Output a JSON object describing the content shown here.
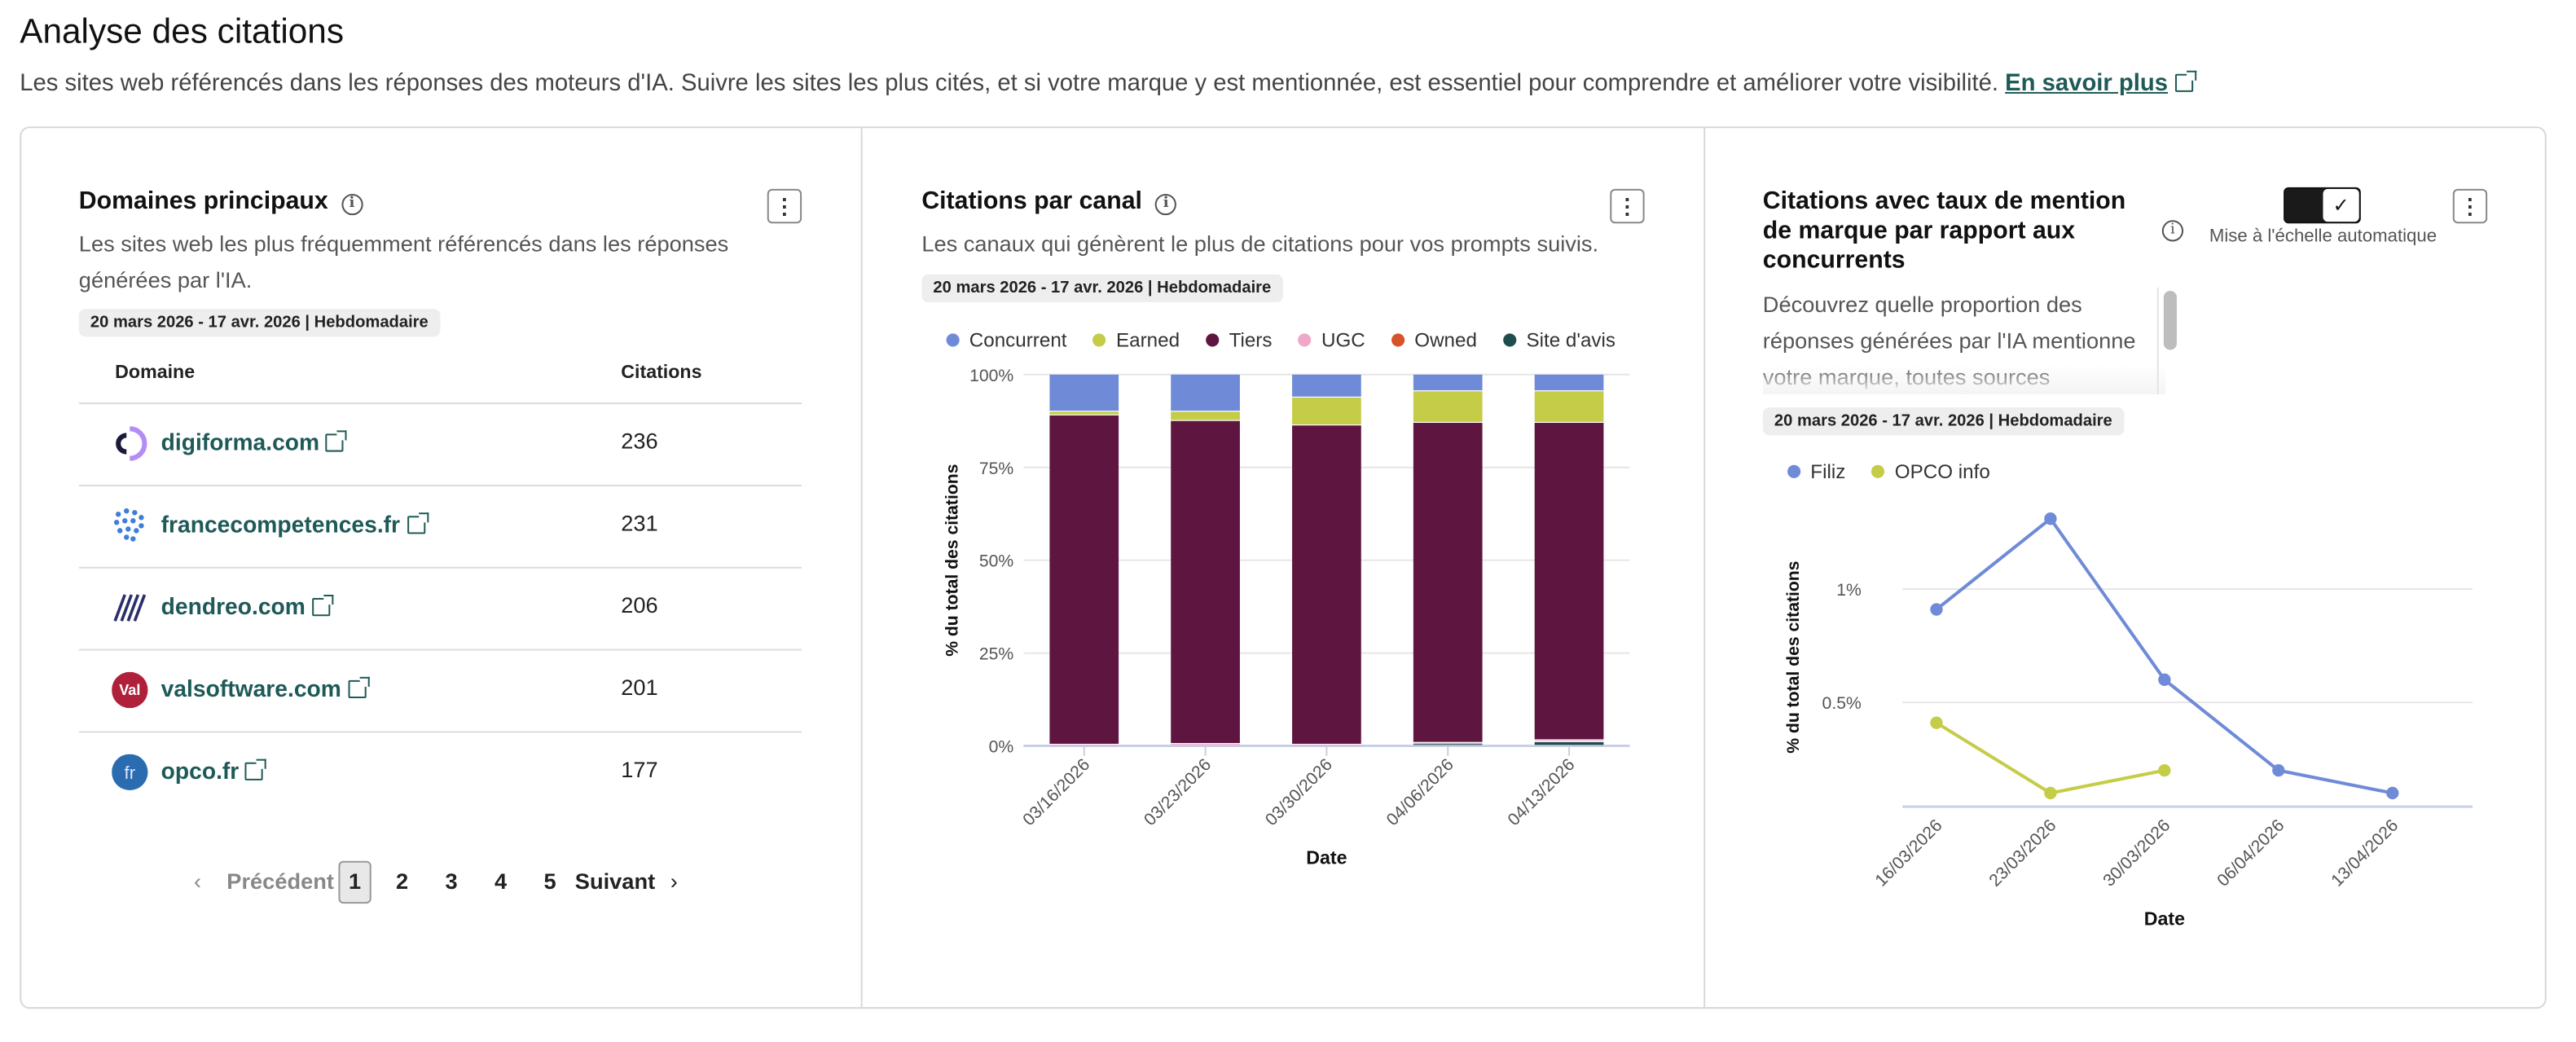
{
  "header": {
    "title": "Analyse des citations",
    "subtitle": "Les sites web référencés dans les réponses des moteurs d'IA. Suivre les sites les plus cités, et si votre marque y est mentionnée, est essentiel pour comprendre et améliorer votre visibilité.",
    "learn_more": "En savoir plus"
  },
  "colors": {
    "link": "#1e5a57",
    "concurrent": "#6f8bd8",
    "earned": "#c5cc48",
    "tiers": "#5e1540",
    "ugc": "#f0a8c8",
    "owned": "#d9532a",
    "site_avis": "#1f4d4f"
  },
  "domains_panel": {
    "title": "Domaines principaux",
    "info_icon": "info-icon",
    "menu_icon": "more-vertical-icon",
    "description": "Les sites web les plus fréquemment référencés dans les réponses générées par l'IA.",
    "badge": "20 mars 2026 - 17 avr. 2026 | Hebdomadaire",
    "columns": [
      "Domaine",
      "Citations"
    ],
    "rows": [
      {
        "domain": "digiforma.com",
        "citations": "236",
        "logo": "digiforma-logo"
      },
      {
        "domain": "francecompetences.fr",
        "citations": "231",
        "logo": "francecompetences-logo"
      },
      {
        "domain": "dendreo.com",
        "citations": "206",
        "logo": "dendreo-logo"
      },
      {
        "domain": "valsoftware.com",
        "citations": "201",
        "logo": "valsoftware-logo"
      },
      {
        "domain": "opco.fr",
        "citations": "177",
        "logo": "opco-logo"
      }
    ],
    "pagination": {
      "prev": "Précédent",
      "next": "Suivant",
      "pages": [
        "1",
        "2",
        "3",
        "4",
        "5"
      ],
      "current": "1"
    }
  },
  "channel_panel": {
    "title": "Citations par canal",
    "description": "Les canaux qui génèrent le plus de citations pour vos prompts suivis.",
    "badge": "20 mars 2026 - 17 avr. 2026 | Hebdomadaire"
  },
  "mention_panel": {
    "title": "Citations avec taux de mention de marque par rapport aux concurrents",
    "toggle_label": "Mise à l'échelle automatique",
    "toggle_on": true,
    "description": "Découvrez quelle proportion des réponses générées par l'IA mentionne votre marque, toutes sources",
    "badge": "20 mars 2026 - 17 avr. 2026 | Hebdomadaire"
  },
  "chart_data": [
    {
      "type": "bar",
      "stacked": true,
      "categories": [
        "03/16/2026",
        "03/23/2026",
        "03/30/2026",
        "04/06/2026",
        "04/13/2026"
      ],
      "xlabel": "Date",
      "ylabel": "% du total des citations",
      "ylim": [
        0,
        100
      ],
      "yticks": [
        "0%",
        "25%",
        "50%",
        "75%",
        "100%"
      ],
      "legend_position": "top",
      "grid": true,
      "series": [
        {
          "name": "Site d'avis",
          "color": "#1f4d4f",
          "values": [
            0,
            0,
            0,
            0.5,
            1
          ]
        },
        {
          "name": "Owned",
          "color": "#d9532a",
          "values": [
            0,
            0,
            0,
            0,
            0
          ]
        },
        {
          "name": "UGC",
          "color": "#f0a8c8",
          "values": [
            0.3,
            0.5,
            0.3,
            0.3,
            0.5
          ]
        },
        {
          "name": "Tiers",
          "color": "#5e1540",
          "values": [
            88.7,
            87,
            86,
            86.2,
            85.5
          ]
        },
        {
          "name": "Earned",
          "color": "#c5cc48",
          "values": [
            1,
            2.5,
            7.5,
            8.5,
            8.5
          ]
        },
        {
          "name": "Concurrent",
          "color": "#6f8bd8",
          "values": [
            10,
            10,
            6.2,
            4.5,
            4.5
          ]
        }
      ],
      "legend_order": [
        "Concurrent",
        "Earned",
        "Tiers",
        "UGC",
        "Owned",
        "Site d'avis"
      ]
    },
    {
      "type": "line",
      "categories": [
        "16/03/2026",
        "23/03/2026",
        "30/03/2026",
        "06/04/2026",
        "13/04/2026"
      ],
      "xlabel": "Date",
      "ylabel": "% du total des citations",
      "ylim": [
        0.04,
        1.4
      ],
      "yticks": [
        {
          "value": 0.5,
          "label": "0.5%"
        },
        {
          "value": 1,
          "label": "1%"
        }
      ],
      "legend_position": "top-left",
      "grid": true,
      "series": [
        {
          "name": "Filiz",
          "color": "#6f8bd8",
          "values": [
            0.91,
            1.31,
            0.6,
            0.2,
            0.1
          ]
        },
        {
          "name": "OPCO info",
          "color": "#c5cc48",
          "values": [
            0.41,
            0.1,
            0.2,
            null,
            null
          ]
        }
      ]
    }
  ]
}
